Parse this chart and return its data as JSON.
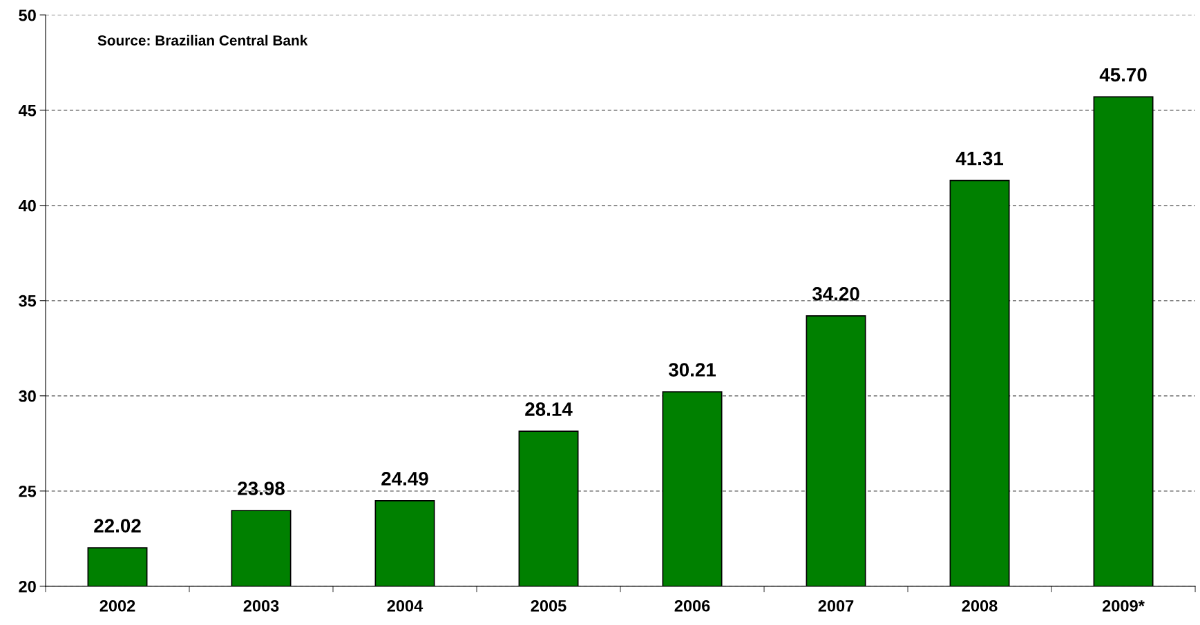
{
  "chart_data": {
    "type": "bar",
    "categories": [
      "2002",
      "2003",
      "2004",
      "2005",
      "2006",
      "2007",
      "2008",
      "2009*"
    ],
    "values": [
      22.02,
      23.98,
      24.49,
      28.14,
      30.21,
      34.2,
      41.31,
      45.7
    ],
    "value_labels": [
      "22.02",
      "23.98",
      "24.49",
      "28.14",
      "30.21",
      "34.20",
      "41.31",
      "45.70"
    ],
    "color": "#008000",
    "ylim": [
      20,
      50
    ],
    "yticks": [
      20,
      25,
      30,
      35,
      40,
      45,
      50
    ],
    "grid": "y",
    "annotations": [
      "Source: Brazilian Central Bank"
    ]
  }
}
